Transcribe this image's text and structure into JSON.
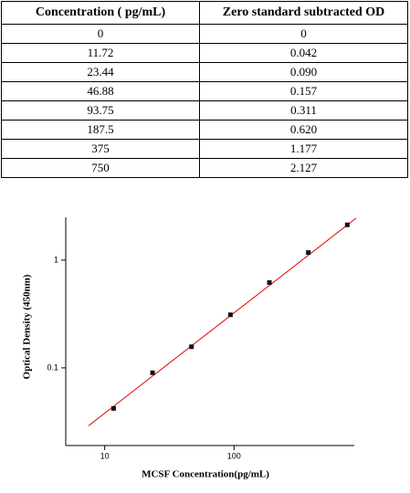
{
  "table": {
    "header": [
      "Concentration ( pg/mL)",
      "Zero standard subtracted OD"
    ],
    "rows": [
      [
        "0",
        "0"
      ],
      [
        "11.72",
        "0.042"
      ],
      [
        "23.44",
        "0.090"
      ],
      [
        "46.88",
        "0.157"
      ],
      [
        "93.75",
        "0.311"
      ],
      [
        "187.5",
        "0.620"
      ],
      [
        "375",
        "1.177"
      ],
      [
        "750",
        "2.127"
      ]
    ]
  },
  "chart_data": {
    "type": "scatter",
    "x_label": "MCSF Concentration(pg/mL)",
    "y_label": "Optical Density (450nm)",
    "x": [
      11.72,
      23.44,
      46.88,
      93.75,
      187.5,
      375,
      750
    ],
    "values": [
      0.042,
      0.09,
      0.157,
      0.311,
      0.62,
      1.177,
      2.127
    ],
    "color": "#111111",
    "fit_line": {
      "x": [
        7.5,
        877
      ],
      "values": [
        0.029,
        2.45
      ],
      "color": "#e00000"
    },
    "xscale": "log",
    "yscale": "log",
    "xlim": [
      5,
      850
    ],
    "ylim": [
      0.019,
      2.5
    ],
    "xticks": [
      10,
      100
    ],
    "yticks": [
      0.1,
      1
    ]
  }
}
